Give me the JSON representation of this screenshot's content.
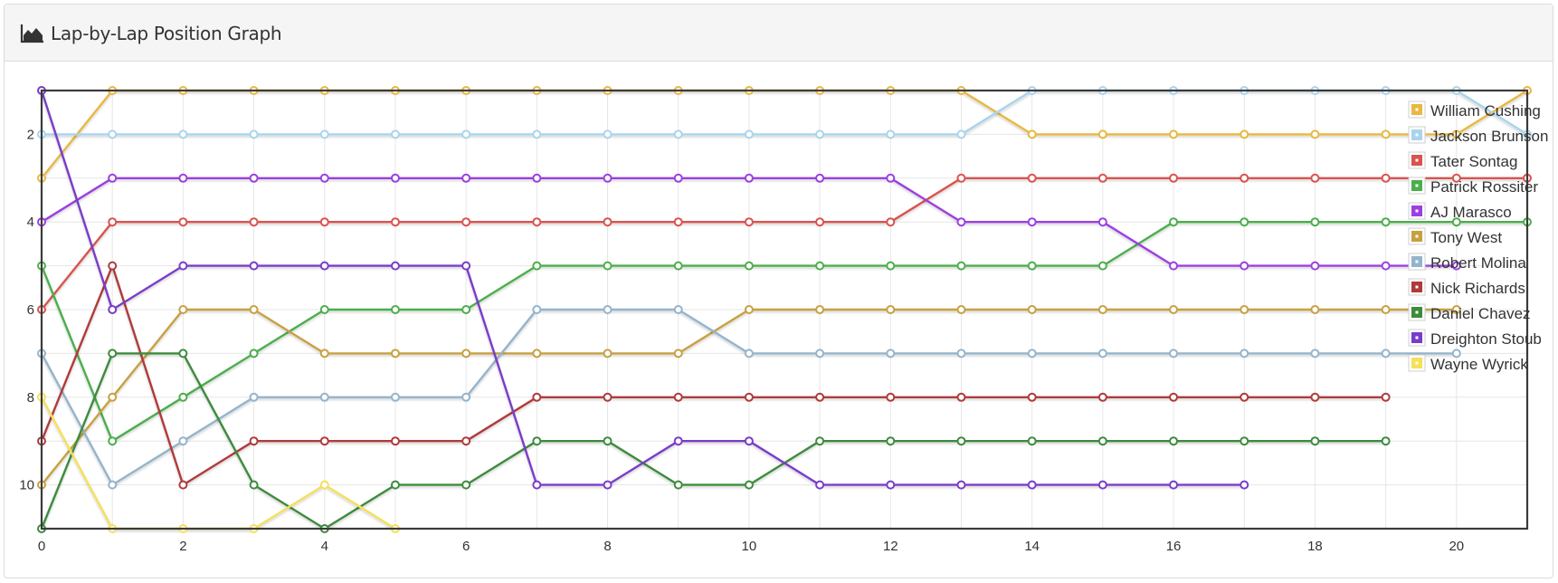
{
  "panel": {
    "title": "Lap-by-Lap Position Graph",
    "icon": "area-chart-icon"
  },
  "chart_data": {
    "type": "line",
    "x_ticks": [
      0,
      2,
      4,
      6,
      8,
      10,
      12,
      14,
      16,
      18,
      20
    ],
    "y_ticks": [
      2,
      4,
      6,
      8,
      10
    ],
    "xlim": [
      0,
      21
    ],
    "ylim": [
      11,
      1
    ],
    "y_inverted": true,
    "grid": true,
    "legend_position": "top-right",
    "series": [
      {
        "name": "William Cushing",
        "color": "#e8b840",
        "x": [
          0,
          1,
          2,
          3,
          4,
          5,
          6,
          7,
          8,
          9,
          10,
          11,
          12,
          13,
          14,
          15,
          16,
          17,
          18,
          19,
          20,
          21
        ],
        "y": [
          3,
          1,
          1,
          1,
          1,
          1,
          1,
          1,
          1,
          1,
          1,
          1,
          1,
          1,
          2,
          2,
          2,
          2,
          2,
          2,
          2,
          1
        ]
      },
      {
        "name": "Jackson Brunson",
        "color": "#a9d4ee",
        "x": [
          0,
          1,
          2,
          3,
          4,
          5,
          6,
          7,
          8,
          9,
          10,
          11,
          12,
          13,
          14,
          15,
          16,
          17,
          18,
          19,
          20,
          21
        ],
        "y": [
          2,
          2,
          2,
          2,
          2,
          2,
          2,
          2,
          2,
          2,
          2,
          2,
          2,
          2,
          1,
          1,
          1,
          1,
          1,
          1,
          1,
          2
        ]
      },
      {
        "name": "Tater Sontag",
        "color": "#d9534f",
        "x": [
          0,
          1,
          2,
          3,
          4,
          5,
          6,
          7,
          8,
          9,
          10,
          11,
          12,
          13,
          14,
          15,
          16,
          17,
          18,
          19,
          20,
          21
        ],
        "y": [
          6,
          4,
          4,
          4,
          4,
          4,
          4,
          4,
          4,
          4,
          4,
          4,
          4,
          3,
          3,
          3,
          3,
          3,
          3,
          3,
          3,
          3
        ]
      },
      {
        "name": "Patrick Rossiter",
        "color": "#4cae4c",
        "x": [
          0,
          1,
          2,
          3,
          4,
          5,
          6,
          7,
          8,
          9,
          10,
          11,
          12,
          13,
          14,
          15,
          16,
          17,
          18,
          19,
          20,
          21
        ],
        "y": [
          5,
          9,
          8,
          7,
          6,
          6,
          6,
          5,
          5,
          5,
          5,
          5,
          5,
          5,
          5,
          5,
          4,
          4,
          4,
          4,
          4,
          4
        ]
      },
      {
        "name": "AJ Marasco",
        "color": "#9b40e0",
        "x": [
          0,
          1,
          2,
          3,
          4,
          5,
          6,
          7,
          8,
          9,
          10,
          11,
          12,
          13,
          14,
          15,
          16,
          17,
          18,
          19,
          20
        ],
        "y": [
          4,
          3,
          3,
          3,
          3,
          3,
          3,
          3,
          3,
          3,
          3,
          3,
          3,
          4,
          4,
          4,
          5,
          5,
          5,
          5,
          5
        ]
      },
      {
        "name": "Tony West",
        "color": "#c8a040",
        "x": [
          0,
          1,
          2,
          3,
          4,
          5,
          6,
          7,
          8,
          9,
          10,
          11,
          12,
          13,
          14,
          15,
          16,
          17,
          18,
          19,
          20
        ],
        "y": [
          10,
          8,
          6,
          6,
          7,
          7,
          7,
          7,
          7,
          7,
          6,
          6,
          6,
          6,
          6,
          6,
          6,
          6,
          6,
          6,
          6
        ]
      },
      {
        "name": "Robert Molina",
        "color": "#94b4cc",
        "x": [
          0,
          1,
          2,
          3,
          4,
          5,
          6,
          7,
          8,
          9,
          10,
          11,
          12,
          13,
          14,
          15,
          16,
          17,
          18,
          19,
          20
        ],
        "y": [
          7,
          10,
          9,
          8,
          8,
          8,
          8,
          6,
          6,
          6,
          7,
          7,
          7,
          7,
          7,
          7,
          7,
          7,
          7,
          7,
          7
        ]
      },
      {
        "name": "Nick Richards",
        "color": "#b03a3a",
        "x": [
          0,
          1,
          2,
          3,
          4,
          5,
          6,
          7,
          8,
          9,
          10,
          11,
          12,
          13,
          14,
          15,
          16,
          17,
          18,
          19
        ],
        "y": [
          9,
          5,
          10,
          9,
          9,
          9,
          9,
          8,
          8,
          8,
          8,
          8,
          8,
          8,
          8,
          8,
          8,
          8,
          8,
          8
        ]
      },
      {
        "name": "Daniel Chavez",
        "color": "#3d8b3d",
        "x": [
          0,
          1,
          2,
          3,
          4,
          5,
          6,
          7,
          8,
          9,
          10,
          11,
          12,
          13,
          14,
          15,
          16,
          17,
          18,
          19
        ],
        "y": [
          11,
          7,
          7,
          10,
          11,
          10,
          10,
          9,
          9,
          10,
          10,
          9,
          9,
          9,
          9,
          9,
          9,
          9,
          9,
          9
        ]
      },
      {
        "name": "Dreighton Stoub",
        "color": "#7a3cc8",
        "x": [
          0,
          1,
          2,
          3,
          4,
          5,
          6,
          7,
          8,
          9,
          10,
          11,
          12,
          13,
          14,
          15,
          16,
          17
        ],
        "y": [
          1,
          6,
          5,
          5,
          5,
          5,
          5,
          10,
          10,
          9,
          9,
          10,
          10,
          10,
          10,
          10,
          10,
          10
        ]
      },
      {
        "name": "Wayne Wyrick",
        "color": "#f5e05a",
        "x": [
          0,
          1,
          2,
          3,
          4,
          5
        ],
        "y": [
          8,
          11,
          11,
          11,
          10,
          11
        ]
      }
    ]
  }
}
